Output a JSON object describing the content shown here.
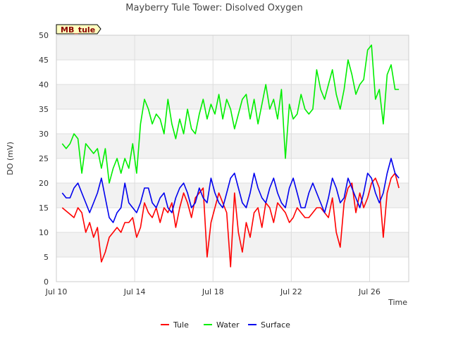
{
  "chart_data": {
    "type": "line",
    "title": "Mayberry Tule Tower: Disolved Oxygen",
    "xlabel": "Time",
    "ylabel": "DO (mV)",
    "station_label": "MB_tule",
    "ylim": [
      0,
      50
    ],
    "yticks": [
      0,
      5,
      10,
      15,
      20,
      25,
      30,
      35,
      40,
      45,
      50
    ],
    "xlim": [
      0,
      18
    ],
    "xticks": [
      {
        "x": 0,
        "label": "Jul 10"
      },
      {
        "x": 4,
        "label": "Jul 14"
      },
      {
        "x": 8,
        "label": "Jul 18"
      },
      {
        "x": 12,
        "label": "Jul 22"
      },
      {
        "x": 16,
        "label": "Jul 26"
      }
    ],
    "grid": true,
    "legend_position": "bottom",
    "series": [
      {
        "name": "Tule",
        "color": "#ff0000",
        "x": [
          0.3,
          0.6,
          0.9,
          1.1,
          1.3,
          1.5,
          1.7,
          1.9,
          2.1,
          2.3,
          2.5,
          2.7,
          2.9,
          3.1,
          3.3,
          3.5,
          3.7,
          3.9,
          4.1,
          4.3,
          4.5,
          4.7,
          4.9,
          5.1,
          5.3,
          5.5,
          5.7,
          5.9,
          6.1,
          6.3,
          6.5,
          6.7,
          6.9,
          7.1,
          7.3,
          7.5,
          7.7,
          7.9,
          8.1,
          8.3,
          8.5,
          8.7,
          8.9,
          9.1,
          9.3,
          9.5,
          9.7,
          9.9,
          10.1,
          10.3,
          10.5,
          10.7,
          10.9,
          11.1,
          11.3,
          11.5,
          11.7,
          11.9,
          12.1,
          12.3,
          12.5,
          12.7,
          12.9,
          13.1,
          13.3,
          13.5,
          13.7,
          13.9,
          14.1,
          14.3,
          14.5,
          14.7,
          14.9,
          15.1,
          15.3,
          15.5,
          15.7,
          15.9,
          16.1,
          16.3,
          16.5,
          16.7,
          16.9,
          17.1,
          17.3,
          17.5
        ],
        "y": [
          15,
          14,
          13,
          15,
          14,
          10,
          12,
          9,
          11,
          4,
          6,
          9,
          10,
          11,
          10,
          12,
          12,
          13,
          9,
          11,
          16,
          14,
          13,
          15,
          12,
          15,
          14,
          16,
          11,
          15,
          18,
          16,
          13,
          17,
          18,
          19,
          5,
          12,
          15,
          18,
          16,
          14,
          3,
          18,
          10,
          6,
          12,
          9,
          14,
          15,
          11,
          16,
          15,
          12,
          16,
          15,
          14,
          12,
          13,
          15,
          14,
          13,
          13,
          14,
          15,
          15,
          14,
          13,
          17,
          10,
          7,
          16,
          19,
          20,
          14,
          18,
          15,
          17,
          20,
          21,
          19,
          9,
          18,
          21,
          22,
          19
        ]
      },
      {
        "name": "Water",
        "color": "#00ee00",
        "x": [
          0.3,
          0.5,
          0.7,
          0.9,
          1.1,
          1.3,
          1.5,
          1.7,
          1.9,
          2.1,
          2.3,
          2.5,
          2.7,
          2.9,
          3.1,
          3.3,
          3.5,
          3.7,
          3.9,
          4.1,
          4.3,
          4.5,
          4.7,
          4.9,
          5.1,
          5.3,
          5.5,
          5.7,
          5.9,
          6.1,
          6.3,
          6.5,
          6.7,
          6.9,
          7.1,
          7.3,
          7.5,
          7.7,
          7.9,
          8.1,
          8.3,
          8.5,
          8.7,
          8.9,
          9.1,
          9.3,
          9.5,
          9.7,
          9.9,
          10.1,
          10.3,
          10.5,
          10.7,
          10.9,
          11.1,
          11.3,
          11.5,
          11.7,
          11.9,
          12.1,
          12.3,
          12.5,
          12.7,
          12.9,
          13.1,
          13.3,
          13.5,
          13.7,
          13.9,
          14.1,
          14.3,
          14.5,
          14.7,
          14.9,
          15.1,
          15.3,
          15.5,
          15.7,
          15.9,
          16.1,
          16.3,
          16.5,
          16.7,
          16.9,
          17.1,
          17.3,
          17.5
        ],
        "y": [
          28,
          27,
          28,
          30,
          29,
          22,
          28,
          27,
          26,
          27,
          23,
          27,
          20,
          23,
          25,
          22,
          25,
          23,
          28,
          22,
          32,
          37,
          35,
          32,
          34,
          33,
          30,
          37,
          32,
          29,
          33,
          30,
          35,
          31,
          30,
          34,
          37,
          33,
          36,
          34,
          38,
          33,
          37,
          35,
          31,
          34,
          37,
          38,
          33,
          37,
          32,
          36,
          40,
          35,
          37,
          33,
          39,
          25,
          36,
          33,
          34,
          38,
          35,
          34,
          35,
          43,
          39,
          37,
          40,
          43,
          38,
          35,
          39,
          45,
          42,
          38,
          40,
          41,
          47,
          48,
          37,
          39,
          32,
          42,
          44,
          39,
          39
        ]
      },
      {
        "name": "Surface",
        "color": "#0000ee",
        "x": [
          0.3,
          0.5,
          0.7,
          0.9,
          1.1,
          1.3,
          1.5,
          1.7,
          1.9,
          2.1,
          2.3,
          2.5,
          2.7,
          2.9,
          3.1,
          3.3,
          3.5,
          3.7,
          3.9,
          4.1,
          4.3,
          4.5,
          4.7,
          4.9,
          5.1,
          5.3,
          5.5,
          5.7,
          5.9,
          6.1,
          6.3,
          6.5,
          6.7,
          6.9,
          7.1,
          7.3,
          7.5,
          7.7,
          7.9,
          8.1,
          8.3,
          8.5,
          8.7,
          8.9,
          9.1,
          9.3,
          9.5,
          9.7,
          9.9,
          10.1,
          10.3,
          10.5,
          10.7,
          10.9,
          11.1,
          11.3,
          11.5,
          11.7,
          11.9,
          12.1,
          12.3,
          12.5,
          12.7,
          12.9,
          13.1,
          13.3,
          13.5,
          13.7,
          13.9,
          14.1,
          14.3,
          14.5,
          14.7,
          14.9,
          15.1,
          15.3,
          15.5,
          15.7,
          15.9,
          16.1,
          16.3,
          16.5,
          16.7,
          16.9,
          17.1,
          17.3,
          17.5
        ],
        "y": [
          18,
          17,
          17,
          19,
          20,
          18,
          16,
          14,
          16,
          18,
          21,
          17,
          13,
          12,
          14,
          15,
          20,
          16,
          15,
          14,
          16,
          19,
          19,
          16,
          15,
          17,
          18,
          15,
          14,
          17,
          19,
          20,
          18,
          15,
          16,
          19,
          17,
          16,
          21,
          18,
          16,
          15,
          18,
          21,
          22,
          19,
          16,
          15,
          18,
          22,
          19,
          17,
          16,
          19,
          21,
          18,
          16,
          15,
          19,
          21,
          18,
          15,
          15,
          18,
          20,
          18,
          16,
          14,
          17,
          21,
          19,
          16,
          17,
          21,
          19,
          17,
          15,
          18,
          22,
          21,
          18,
          16,
          18,
          22,
          25,
          22,
          21
        ]
      }
    ]
  }
}
